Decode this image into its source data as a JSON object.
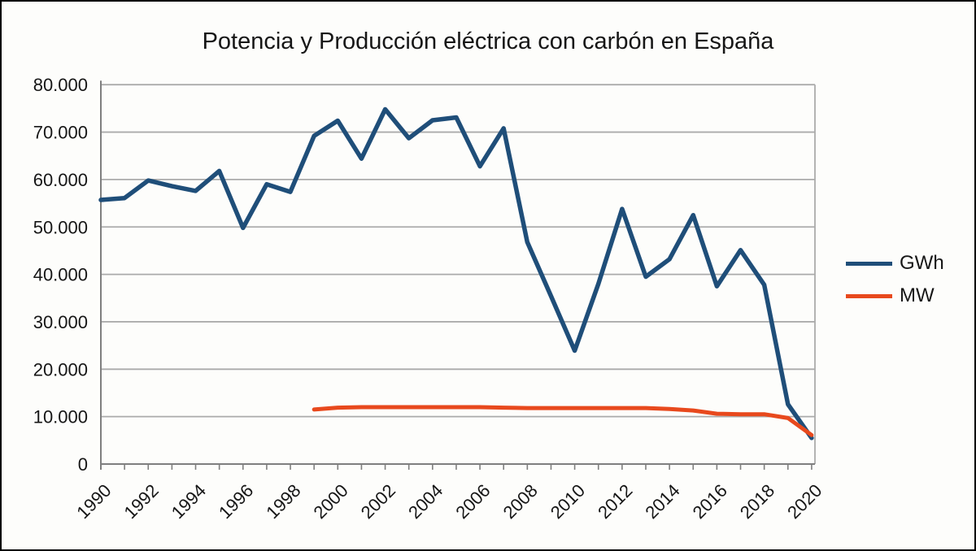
{
  "chart": {
    "title": "Potencia y Producción eléctrica con carbón en España",
    "colors": {
      "gwh_line": "#1f4e79",
      "mw_line": "#e8491d",
      "gridline": "#ababab",
      "axis": "#7f7f7f",
      "text": "#161616",
      "background": "#fdfdfb",
      "frame_border": "#000000"
    },
    "legend": [
      {
        "label": "GWh",
        "color": "#1f4e79"
      },
      {
        "label": "MW",
        "color": "#e8491d"
      }
    ],
    "y_axis": {
      "tick_labels": [
        "0",
        "10.000",
        "20.000",
        "30.000",
        "40.000",
        "50.000",
        "60.000",
        "70.000",
        "80.000"
      ],
      "min": 0,
      "max": 80000,
      "step": 10000
    },
    "x_axis": {
      "tick_labels": [
        "1990",
        "1992",
        "1994",
        "1996",
        "1998",
        "2000",
        "2002",
        "2004",
        "2006",
        "2008",
        "2010",
        "2012",
        "2014",
        "2016",
        "2018",
        "2020"
      ]
    }
  },
  "chart_data": {
    "type": "line",
    "title": "Potencia y Producción eléctrica con carbón en España",
    "xlabel": "",
    "ylabel": "",
    "ylim": [
      0,
      80000
    ],
    "grid": true,
    "legend_position": "right",
    "x": [
      1990,
      1991,
      1992,
      1993,
      1994,
      1995,
      1996,
      1997,
      1998,
      1999,
      2000,
      2001,
      2002,
      2003,
      2004,
      2005,
      2006,
      2007,
      2008,
      2009,
      2010,
      2011,
      2012,
      2013,
      2014,
      2015,
      2016,
      2017,
      2018,
      2019,
      2020
    ],
    "series": [
      {
        "name": "GWh",
        "color": "#1f4e79",
        "values": [
          55700,
          56100,
          59800,
          58600,
          57600,
          61800,
          49800,
          59000,
          57400,
          69200,
          72400,
          64400,
          74800,
          68700,
          72500,
          73100,
          62800,
          70800,
          46800,
          35400,
          23900,
          38000,
          53800,
          39500,
          43200,
          52500,
          37500,
          45100,
          37800,
          12600,
          5500
        ]
      },
      {
        "name": "MW",
        "color": "#e8491d",
        "values": [
          null,
          null,
          null,
          null,
          null,
          null,
          null,
          null,
          null,
          11500,
          11900,
          12000,
          12000,
          12000,
          12000,
          12000,
          12000,
          11900,
          11800,
          11800,
          11800,
          11800,
          11800,
          11800,
          11600,
          11300,
          10600,
          10500,
          10500,
          9700,
          6100
        ]
      }
    ]
  }
}
